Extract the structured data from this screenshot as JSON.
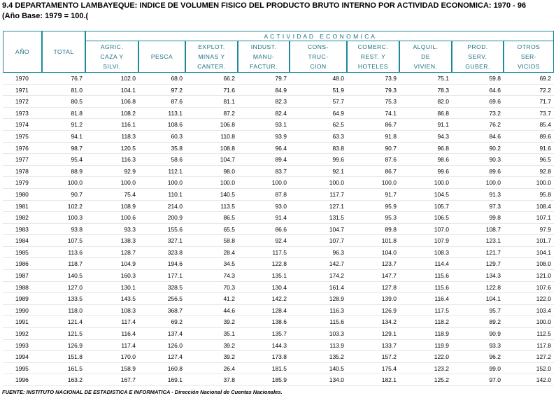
{
  "title": "9.4 DEPARTAMENTO LAMBAYEQUE: INDICE DE VOLUMEN FISICO DEL PRODUCTO BRUTO INTERNO POR ACTIVIDAD ECONOMICA: 1970 - 96",
  "subtitle": "(Año Base: 1979 = 100.(",
  "table": {
    "group_header": "A C T I V I D A D   E C O N O M I C A",
    "columns": [
      [
        "AÑO"
      ],
      [
        "TOTAL"
      ],
      [
        "AGRIC.",
        "CAZA Y",
        "SILVI."
      ],
      [
        "PESCA"
      ],
      [
        "EXPLOT.",
        "MINAS Y",
        "CANTER."
      ],
      [
        "INDUST.",
        "MANU-",
        "FACTUR."
      ],
      [
        "CONS-",
        "TRUC-",
        "CION"
      ],
      [
        "COMERC.",
        "REST. Y",
        "HOTELES"
      ],
      [
        "ALQUIL.",
        "DE",
        "VIVIEN."
      ],
      [
        "PROD.",
        "SERV.",
        "GUBER."
      ],
      [
        "OTROS",
        "SER-",
        "VICIOS"
      ]
    ],
    "rows": [
      [
        "1970",
        "76.7",
        "102.0",
        "68.0",
        "66.2",
        "79.7",
        "48.0",
        "73.9",
        "75.1",
        "59.8",
        "69.2"
      ],
      [
        "1971",
        "81.0",
        "104.1",
        "97.2",
        "71.6",
        "84.9",
        "51.9",
        "79.3",
        "78.3",
        "64.6",
        "72.2"
      ],
      [
        "1972",
        "80.5",
        "106.8",
        "87.6",
        "81.1",
        "82.3",
        "57.7",
        "75.3",
        "82.0",
        "69.6",
        "71.7"
      ],
      [
        "1973",
        "81.8",
        "108.2",
        "113.1",
        "87.2",
        "82.4",
        "64.9",
        "74.1",
        "86.8",
        "73.2",
        "73.7"
      ],
      [
        "1974",
        "91.2",
        "116.1",
        "108.6",
        "106.8",
        "93.1",
        "62.5",
        "86.7",
        "91.1",
        "76.2",
        "85.4"
      ],
      [
        "1975",
        "94.1",
        "118.3",
        "60.3",
        "110.8",
        "93.9",
        "63.3",
        "91.8",
        "94.3",
        "84.6",
        "89.6"
      ],
      [
        "1976",
        "98.7",
        "120.5",
        "35.8",
        "108.8",
        "96.4",
        "83.8",
        "90.7",
        "96.8",
        "90.2",
        "91.6"
      ],
      [
        "1977",
        "95.4",
        "116.3",
        "58.6",
        "104.7",
        "89.4",
        "99.6",
        "87.6",
        "98.6",
        "90.3",
        "96.5"
      ],
      [
        "1978",
        "88.9",
        "92.9",
        "112.1",
        "98.0",
        "83.7",
        "92.1",
        "86.7",
        "99.6",
        "89.6",
        "92.8"
      ],
      [
        "1979",
        "100.0",
        "100.0",
        "100.0",
        "100.0",
        "100.0",
        "100.0",
        "100.0",
        "100.0",
        "100.0",
        "100.0"
      ],
      [
        "1980",
        "90.7",
        "75.4",
        "110.1",
        "140.5",
        "87.8",
        "117.7",
        "91.7",
        "104.5",
        "91.3",
        "95.8"
      ],
      [
        "1981",
        "102.2",
        "108.9",
        "214.0",
        "113.5",
        "93.0",
        "127.1",
        "95.9",
        "105.7",
        "97.3",
        "108.4"
      ],
      [
        "1982",
        "100.3",
        "100.6",
        "200.9",
        "86.5",
        "91.4",
        "131.5",
        "95.3",
        "106.5",
        "99.8",
        "107.1"
      ],
      [
        "1983",
        "93.8",
        "93.3",
        "155.6",
        "65.5",
        "86.6",
        "104.7",
        "89.8",
        "107.0",
        "108.7",
        "97.9"
      ],
      [
        "1984",
        "107.5",
        "138.3",
        "327.1",
        "58.8",
        "92.4",
        "107.7",
        "101.8",
        "107.9",
        "123.1",
        "101.7"
      ],
      [
        "1985",
        "113.6",
        "128.7",
        "323.8",
        "28.4",
        "117.5",
        "96.3",
        "104.0",
        "108.3",
        "121.7",
        "104.1"
      ],
      [
        "1986",
        "118.7",
        "104.9",
        "194.6",
        "34.5",
        "122.8",
        "142.7",
        "123.7",
        "114.4",
        "129.7",
        "108.0"
      ],
      [
        "1987",
        "140.5",
        "160.3",
        "177.1",
        "74.3",
        "135.1",
        "174.2",
        "147.7",
        "115.6",
        "134.3",
        "121.0"
      ],
      [
        "1988",
        "127.0",
        "130.1",
        "328.5",
        "70.3",
        "130.4",
        "161.4",
        "127.8",
        "115.6",
        "122.8",
        "107.6"
      ],
      [
        "1989",
        "133.5",
        "143.5",
        "256.5",
        "41.2",
        "142.2",
        "128.9",
        "139.0",
        "116.4",
        "104.1",
        "122.0"
      ],
      [
        "1990",
        "118.0",
        "108.3",
        "368.7",
        "44.6",
        "128.4",
        "116.3",
        "126.9",
        "117.5",
        "95.7",
        "103.4"
      ],
      [
        "1991",
        "121.4",
        "117.4",
        "69.2",
        "39.2",
        "138.6",
        "115.6",
        "134.2",
        "118.2",
        "89.2",
        "100.0"
      ],
      [
        "1992",
        "121.5",
        "116.4",
        "137.4",
        "35.1",
        "135.7",
        "103.3",
        "129.1",
        "118.9",
        "90.9",
        "112.5"
      ],
      [
        "1993",
        "126.9",
        "117.4",
        "126.0",
        "39.2",
        "144.3",
        "113.9",
        "133.7",
        "119.9",
        "93.3",
        "117.8"
      ],
      [
        "1994",
        "151.8",
        "170.0",
        "127.4",
        "39.2",
        "173.8",
        "135.2",
        "157.2",
        "122.0",
        "96.2",
        "127.2"
      ],
      [
        "1995",
        "161.5",
        "158.9",
        "160.8",
        "26.4",
        "181.5",
        "140.5",
        "175.4",
        "123.2",
        "99.0",
        "152.0"
      ],
      [
        "1996",
        "163.2",
        "167.7",
        "169.1",
        "37.8",
        "185.9",
        "134.0",
        "182.1",
        "125.2",
        "97.0",
        "142.0"
      ]
    ]
  },
  "footer": "FUENTE: INSTITUTO NACIONAL DE ESTADISTICA E INFORMATICA - Dirección Nacional de Cuentas Nacionales."
}
